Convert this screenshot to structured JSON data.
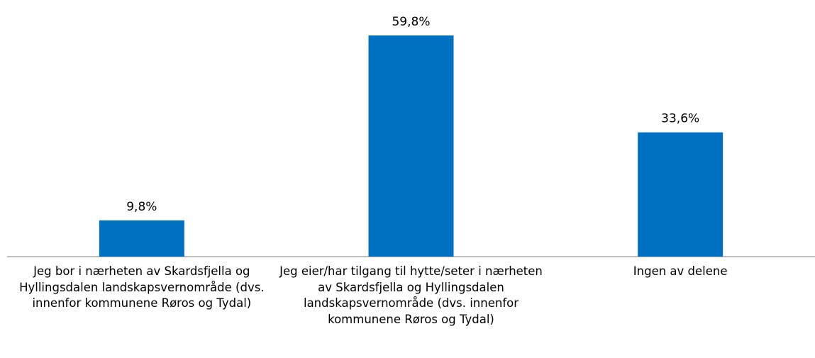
{
  "chart_data": {
    "type": "bar",
    "categories": [
      "Jeg bor i nærheten av Skardsfjella og Hyllingsdalen landskapsvernområde (dvs. innenfor kommunene Røros og Tydal)",
      "Jeg eier/har tilgang til hytte/seter i nærheten av Skardsfjella og Hyllingsdalen landskapsvernområde (dvs. innenfor kommunene Røros og Tydal)",
      "Ingen av delene"
    ],
    "values": [
      9.8,
      59.8,
      33.6
    ],
    "value_labels": [
      "9,8%",
      "59,8%",
      "33,6%"
    ],
    "color": "#0070c0"
  }
}
